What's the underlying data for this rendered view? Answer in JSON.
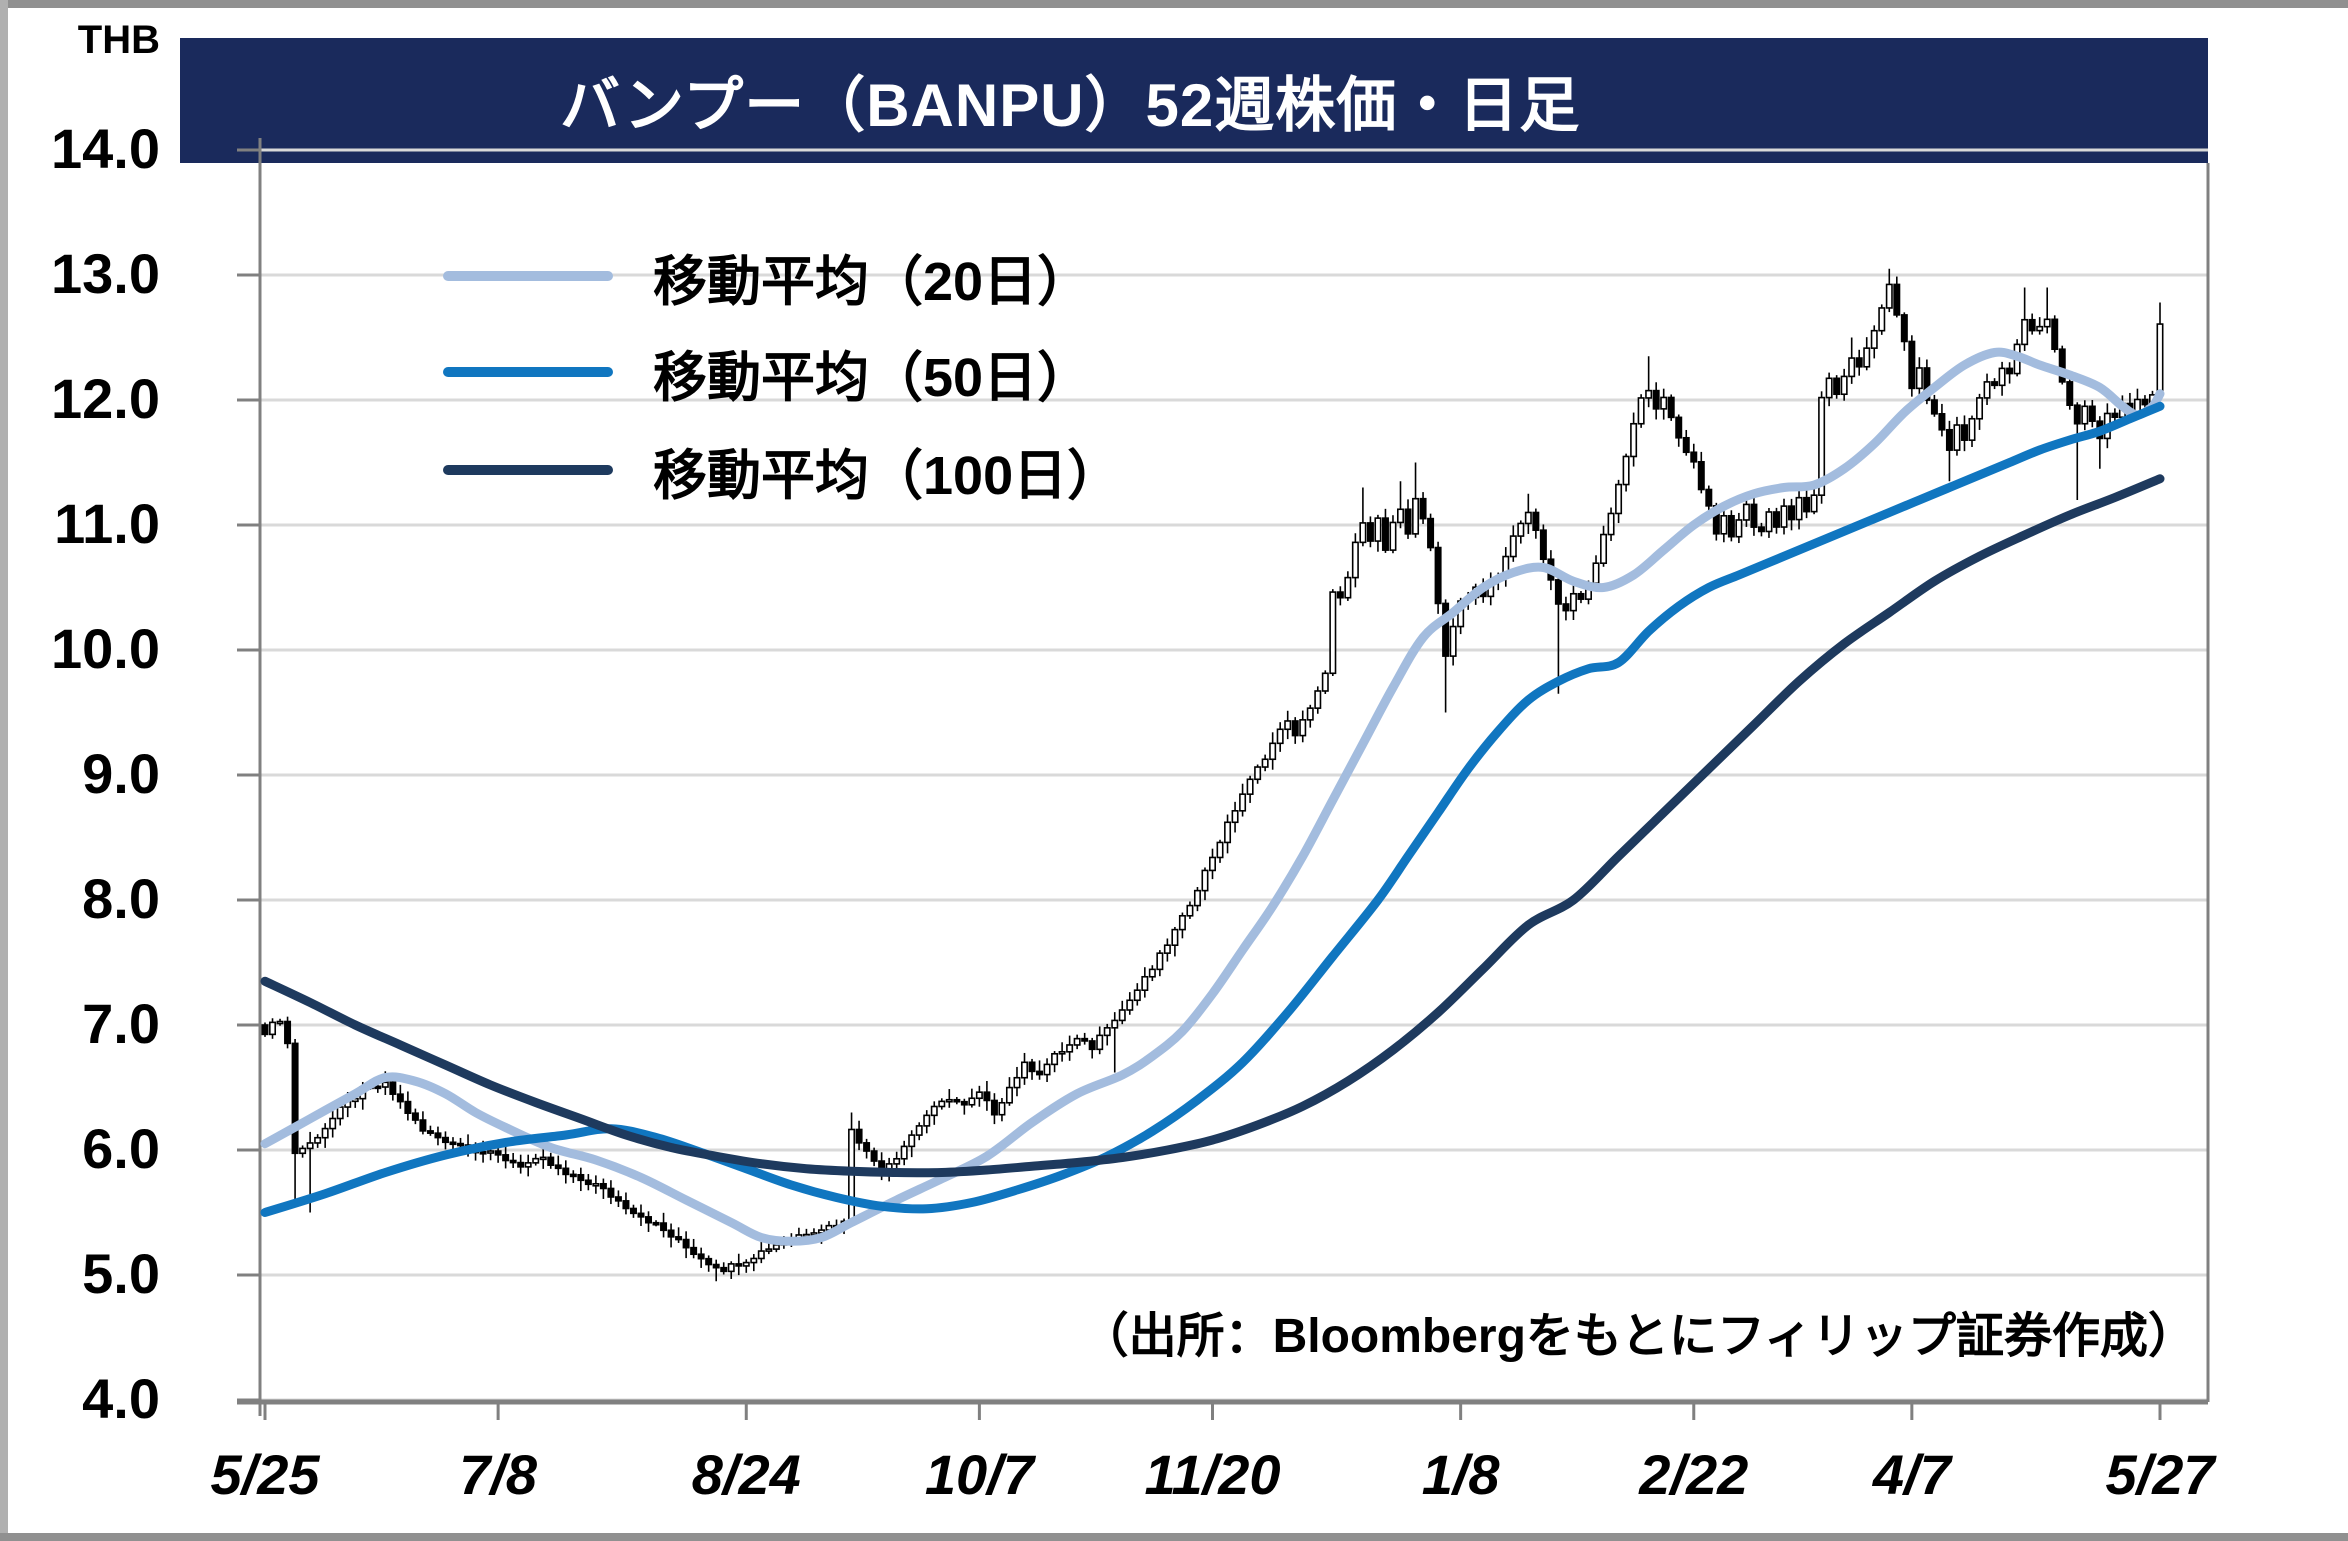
{
  "title": {
    "text": "バンプー（BANPU）52週株価・日足"
  },
  "axis": {
    "unit": "THB",
    "y_ticks": [
      "14.0",
      "13.0",
      "12.0",
      "11.0",
      "10.0",
      "9.0",
      "8.0",
      "7.0",
      "6.0",
      "5.0",
      "4.0"
    ],
    "x_ticks": [
      "5/25",
      "7/8",
      "8/24",
      "10/7",
      "11/20",
      "1/8",
      "2/22",
      "4/7",
      "5/27"
    ]
  },
  "legend": [
    {
      "label": "移動平均（20日）",
      "color": "#a3bcde"
    },
    {
      "label": "移動平均（50日）",
      "color": "#1076c0"
    },
    {
      "label": "移動平均（100日）",
      "color": "#1e3a5e"
    }
  ],
  "source_note": "（出所：Bloombergをもとにフィリップ証券作成）",
  "colors": {
    "title_bg": "#1a2a5c",
    "title_text": "#ffffff",
    "grid": "#d9d9d9",
    "axis": "#808080",
    "candle_up": "#ffffff",
    "candle_down": "#000000",
    "candle_stroke": "#000000",
    "ma20": "#a3bcde",
    "ma50": "#1076c0",
    "ma100": "#1e3a5e"
  },
  "chart_data": {
    "type": "candlestick",
    "title": "バンプー（BANPU）52週株価・日足",
    "ylabel": "THB",
    "ylim": [
      4.0,
      14.0
    ],
    "grid": true,
    "sessions": 253,
    "x_tick_labels": [
      "5/25",
      "7/8",
      "8/24",
      "10/7",
      "11/20",
      "1/8",
      "2/22",
      "4/7",
      "5/27"
    ],
    "x_tick_session_index": [
      0,
      31,
      64,
      95,
      126,
      159,
      190,
      219,
      252
    ],
    "open_first": 7.0,
    "close_anchors": [
      [
        0,
        6.95
      ],
      [
        2,
        7.05
      ],
      [
        3,
        6.85
      ],
      [
        4,
        5.98
      ],
      [
        6,
        6.05
      ],
      [
        8,
        6.18
      ],
      [
        10,
        6.32
      ],
      [
        13,
        6.48
      ],
      [
        16,
        6.52
      ],
      [
        18,
        6.38
      ],
      [
        21,
        6.15
      ],
      [
        24,
        6.08
      ],
      [
        27,
        6.02
      ],
      [
        31,
        5.95
      ],
      [
        34,
        5.88
      ],
      [
        37,
        5.92
      ],
      [
        40,
        5.8
      ],
      [
        44,
        5.72
      ],
      [
        48,
        5.55
      ],
      [
        52,
        5.4
      ],
      [
        56,
        5.22
      ],
      [
        59,
        5.1
      ],
      [
        61,
        5.05
      ],
      [
        64,
        5.12
      ],
      [
        67,
        5.22
      ],
      [
        70,
        5.3
      ],
      [
        73,
        5.36
      ],
      [
        77,
        5.42
      ],
      [
        78,
        6.18
      ],
      [
        80,
        5.98
      ],
      [
        82,
        5.85
      ],
      [
        84,
        5.95
      ],
      [
        86,
        6.12
      ],
      [
        88,
        6.28
      ],
      [
        91,
        6.42
      ],
      [
        93,
        6.35
      ],
      [
        95,
        6.45
      ],
      [
        97,
        6.3
      ],
      [
        99,
        6.5
      ],
      [
        101,
        6.68
      ],
      [
        103,
        6.62
      ],
      [
        105,
        6.75
      ],
      [
        108,
        6.88
      ],
      [
        110,
        6.82
      ],
      [
        112,
        7.0
      ],
      [
        114,
        7.12
      ],
      [
        116,
        7.28
      ],
      [
        118,
        7.45
      ],
      [
        120,
        7.65
      ],
      [
        122,
        7.85
      ],
      [
        124,
        8.1
      ],
      [
        126,
        8.35
      ],
      [
        128,
        8.6
      ],
      [
        130,
        8.85
      ],
      [
        132,
        9.05
      ],
      [
        134,
        9.25
      ],
      [
        136,
        9.45
      ],
      [
        137,
        9.3
      ],
      [
        139,
        9.55
      ],
      [
        141,
        9.8
      ],
      [
        142,
        10.45
      ],
      [
        143,
        10.4
      ],
      [
        144,
        10.6
      ],
      [
        145,
        10.85
      ],
      [
        146,
        11.0
      ],
      [
        147,
        10.85
      ],
      [
        148,
        11.05
      ],
      [
        149,
        10.8
      ],
      [
        150,
        11.0
      ],
      [
        151,
        11.15
      ],
      [
        152,
        10.95
      ],
      [
        153,
        11.2
      ],
      [
        154,
        11.05
      ],
      [
        155,
        10.8
      ],
      [
        156,
        10.35
      ],
      [
        157,
        9.95
      ],
      [
        158,
        10.2
      ],
      [
        159,
        10.4
      ],
      [
        160,
        10.4
      ],
      [
        161,
        10.5
      ],
      [
        162,
        10.45
      ],
      [
        163,
        10.55
      ],
      [
        164,
        10.6
      ],
      [
        165,
        10.75
      ],
      [
        166,
        10.9
      ],
      [
        167,
        11.0
      ],
      [
        168,
        11.1
      ],
      [
        169,
        10.95
      ],
      [
        170,
        10.75
      ],
      [
        171,
        10.55
      ],
      [
        172,
        10.35
      ],
      [
        173,
        10.3
      ],
      [
        174,
        10.45
      ],
      [
        175,
        10.4
      ],
      [
        176,
        10.55
      ],
      [
        177,
        10.7
      ],
      [
        178,
        10.9
      ],
      [
        179,
        11.1
      ],
      [
        180,
        11.3
      ],
      [
        181,
        11.55
      ],
      [
        182,
        11.8
      ],
      [
        183,
        12.0
      ],
      [
        184,
        12.1
      ],
      [
        185,
        11.95
      ],
      [
        186,
        12.0
      ],
      [
        187,
        11.85
      ],
      [
        188,
        11.7
      ],
      [
        190,
        11.5
      ],
      [
        191,
        11.3
      ],
      [
        192,
        11.15
      ],
      [
        193,
        10.95
      ],
      [
        194,
        11.05
      ],
      [
        195,
        10.9
      ],
      [
        196,
        11.05
      ],
      [
        197,
        11.15
      ],
      [
        198,
        11.0
      ],
      [
        199,
        10.95
      ],
      [
        200,
        11.1
      ],
      [
        201,
        11.0
      ],
      [
        202,
        11.15
      ],
      [
        203,
        11.05
      ],
      [
        204,
        11.2
      ],
      [
        205,
        11.1
      ],
      [
        206,
        11.25
      ],
      [
        207,
        12.0
      ],
      [
        208,
        12.15
      ],
      [
        209,
        12.05
      ],
      [
        210,
        12.2
      ],
      [
        211,
        12.35
      ],
      [
        212,
        12.25
      ],
      [
        213,
        12.4
      ],
      [
        214,
        12.55
      ],
      [
        215,
        12.75
      ],
      [
        216,
        12.9
      ],
      [
        217,
        12.7
      ],
      [
        218,
        12.45
      ],
      [
        219,
        12.1
      ],
      [
        220,
        12.25
      ],
      [
        221,
        12.0
      ],
      [
        222,
        11.9
      ],
      [
        223,
        11.75
      ],
      [
        224,
        11.6
      ],
      [
        225,
        11.8
      ],
      [
        226,
        11.7
      ],
      [
        227,
        11.85
      ],
      [
        228,
        12.0
      ],
      [
        229,
        12.15
      ],
      [
        230,
        12.1
      ],
      [
        231,
        12.25
      ],
      [
        232,
        12.2
      ],
      [
        233,
        12.45
      ],
      [
        234,
        12.65
      ],
      [
        235,
        12.55
      ],
      [
        236,
        12.6
      ],
      [
        237,
        12.65
      ],
      [
        238,
        12.4
      ],
      [
        239,
        12.15
      ],
      [
        240,
        11.95
      ],
      [
        241,
        11.8
      ],
      [
        242,
        11.95
      ],
      [
        243,
        11.85
      ],
      [
        244,
        11.7
      ],
      [
        245,
        11.9
      ],
      [
        246,
        11.85
      ],
      [
        247,
        11.95
      ],
      [
        248,
        11.9
      ],
      [
        249,
        12.0
      ],
      [
        250,
        11.95
      ],
      [
        251,
        12.05
      ],
      [
        252,
        12.6
      ]
    ],
    "wick_events": [
      {
        "t": 4,
        "low": 5.55
      },
      {
        "t": 6,
        "low": 5.5
      },
      {
        "t": 60,
        "low": 4.95
      },
      {
        "t": 78,
        "high": 6.3
      },
      {
        "t": 113,
        "low": 6.62
      },
      {
        "t": 146,
        "high": 11.3
      },
      {
        "t": 151,
        "high": 11.35
      },
      {
        "t": 153,
        "high": 11.5
      },
      {
        "t": 157,
        "low": 9.5
      },
      {
        "t": 168,
        "high": 11.25
      },
      {
        "t": 172,
        "low": 9.65
      },
      {
        "t": 184,
        "high": 12.35
      },
      {
        "t": 211,
        "high": 12.5
      },
      {
        "t": 216,
        "high": 13.05
      },
      {
        "t": 224,
        "low": 11.35
      },
      {
        "t": 234,
        "high": 12.9
      },
      {
        "t": 237,
        "high": 12.9
      },
      {
        "t": 241,
        "low": 11.2
      },
      {
        "t": 244,
        "low": 11.45
      },
      {
        "t": 252,
        "high": 12.78
      }
    ],
    "series": [
      {
        "name": "移動平均（20日）",
        "color": "#a3bcde",
        "anchors": [
          [
            0,
            6.05
          ],
          [
            6,
            6.25
          ],
          [
            12,
            6.45
          ],
          [
            16,
            6.58
          ],
          [
            20,
            6.55
          ],
          [
            24,
            6.45
          ],
          [
            28,
            6.3
          ],
          [
            32,
            6.18
          ],
          [
            38,
            6.02
          ],
          [
            44,
            5.92
          ],
          [
            50,
            5.78
          ],
          [
            56,
            5.6
          ],
          [
            62,
            5.42
          ],
          [
            66,
            5.3
          ],
          [
            70,
            5.27
          ],
          [
            74,
            5.3
          ],
          [
            78,
            5.42
          ],
          [
            84,
            5.6
          ],
          [
            90,
            5.77
          ],
          [
            96,
            5.95
          ],
          [
            102,
            6.22
          ],
          [
            108,
            6.45
          ],
          [
            114,
            6.6
          ],
          [
            118,
            6.75
          ],
          [
            122,
            6.95
          ],
          [
            126,
            7.25
          ],
          [
            130,
            7.6
          ],
          [
            134,
            7.95
          ],
          [
            138,
            8.35
          ],
          [
            142,
            8.8
          ],
          [
            146,
            9.25
          ],
          [
            150,
            9.7
          ],
          [
            154,
            10.1
          ],
          [
            158,
            10.3
          ],
          [
            162,
            10.5
          ],
          [
            166,
            10.62
          ],
          [
            170,
            10.66
          ],
          [
            174,
            10.55
          ],
          [
            178,
            10.5
          ],
          [
            182,
            10.6
          ],
          [
            186,
            10.8
          ],
          [
            190,
            11.0
          ],
          [
            194,
            11.15
          ],
          [
            198,
            11.25
          ],
          [
            202,
            11.3
          ],
          [
            206,
            11.32
          ],
          [
            210,
            11.45
          ],
          [
            214,
            11.65
          ],
          [
            218,
            11.9
          ],
          [
            222,
            12.1
          ],
          [
            226,
            12.28
          ],
          [
            230,
            12.38
          ],
          [
            233,
            12.35
          ],
          [
            236,
            12.28
          ],
          [
            240,
            12.2
          ],
          [
            244,
            12.1
          ],
          [
            247,
            11.95
          ],
          [
            249,
            11.88
          ],
          [
            251,
            11.95
          ],
          [
            252,
            12.05
          ]
        ]
      },
      {
        "name": "移動平均（50日）",
        "color": "#1076c0",
        "anchors": [
          [
            0,
            5.5
          ],
          [
            8,
            5.65
          ],
          [
            16,
            5.82
          ],
          [
            24,
            5.96
          ],
          [
            32,
            6.06
          ],
          [
            40,
            6.12
          ],
          [
            46,
            6.17
          ],
          [
            52,
            6.1
          ],
          [
            58,
            5.98
          ],
          [
            64,
            5.85
          ],
          [
            70,
            5.72
          ],
          [
            76,
            5.62
          ],
          [
            82,
            5.55
          ],
          [
            88,
            5.53
          ],
          [
            94,
            5.58
          ],
          [
            100,
            5.68
          ],
          [
            106,
            5.8
          ],
          [
            112,
            5.95
          ],
          [
            118,
            6.15
          ],
          [
            124,
            6.4
          ],
          [
            130,
            6.7
          ],
          [
            136,
            7.1
          ],
          [
            142,
            7.55
          ],
          [
            148,
            8.0
          ],
          [
            152,
            8.35
          ],
          [
            156,
            8.7
          ],
          [
            160,
            9.05
          ],
          [
            164,
            9.35
          ],
          [
            168,
            9.6
          ],
          [
            172,
            9.75
          ],
          [
            176,
            9.85
          ],
          [
            180,
            9.9
          ],
          [
            184,
            10.15
          ],
          [
            188,
            10.35
          ],
          [
            192,
            10.5
          ],
          [
            196,
            10.6
          ],
          [
            200,
            10.7
          ],
          [
            204,
            10.8
          ],
          [
            208,
            10.9
          ],
          [
            212,
            11.0
          ],
          [
            216,
            11.1
          ],
          [
            220,
            11.2
          ],
          [
            224,
            11.3
          ],
          [
            228,
            11.4
          ],
          [
            232,
            11.5
          ],
          [
            236,
            11.6
          ],
          [
            240,
            11.68
          ],
          [
            244,
            11.75
          ],
          [
            248,
            11.85
          ],
          [
            252,
            11.95
          ]
        ]
      },
      {
        "name": "移動平均（100日）",
        "color": "#1e3a5e",
        "anchors": [
          [
            0,
            7.35
          ],
          [
            6,
            7.18
          ],
          [
            12,
            7.0
          ],
          [
            18,
            6.84
          ],
          [
            24,
            6.68
          ],
          [
            30,
            6.52
          ],
          [
            36,
            6.38
          ],
          [
            42,
            6.25
          ],
          [
            48,
            6.12
          ],
          [
            54,
            6.02
          ],
          [
            60,
            5.95
          ],
          [
            66,
            5.89
          ],
          [
            72,
            5.85
          ],
          [
            78,
            5.83
          ],
          [
            84,
            5.82
          ],
          [
            90,
            5.82
          ],
          [
            96,
            5.84
          ],
          [
            102,
            5.87
          ],
          [
            108,
            5.9
          ],
          [
            114,
            5.94
          ],
          [
            120,
            6.0
          ],
          [
            126,
            6.08
          ],
          [
            132,
            6.2
          ],
          [
            138,
            6.35
          ],
          [
            144,
            6.55
          ],
          [
            150,
            6.8
          ],
          [
            156,
            7.1
          ],
          [
            162,
            7.45
          ],
          [
            168,
            7.8
          ],
          [
            174,
            8.0
          ],
          [
            180,
            8.35
          ],
          [
            186,
            8.7
          ],
          [
            192,
            9.05
          ],
          [
            198,
            9.4
          ],
          [
            204,
            9.75
          ],
          [
            210,
            10.05
          ],
          [
            216,
            10.3
          ],
          [
            222,
            10.55
          ],
          [
            228,
            10.75
          ],
          [
            234,
            10.92
          ],
          [
            240,
            11.08
          ],
          [
            246,
            11.22
          ],
          [
            252,
            11.37
          ]
        ]
      }
    ]
  }
}
